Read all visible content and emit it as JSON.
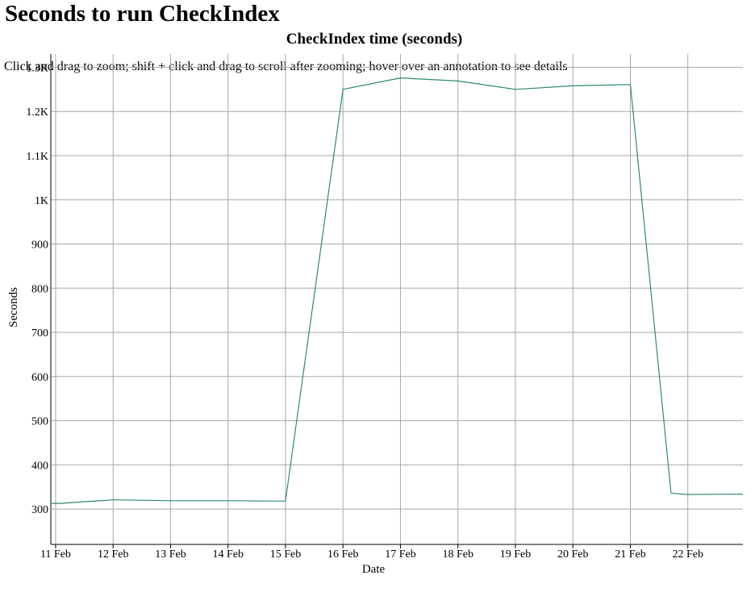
{
  "page": {
    "title": "Seconds to run CheckIndex",
    "instructions": "Click and drag to zoom; shift + click and drag to scroll after zooming; hover over an annotation to see details"
  },
  "chart_data": {
    "type": "line",
    "title": "CheckIndex time (seconds)",
    "xlabel": "Date",
    "ylabel": "Seconds",
    "xlim": [
      "2024-02-10T22:00",
      "2024-02-22T23:00"
    ],
    "ylim": [
      220,
      1330
    ],
    "grid": true,
    "legend": "none",
    "x_ticks": [
      {
        "t": "2024-02-11T00:00",
        "label": "11 Feb"
      },
      {
        "t": "2024-02-12T00:00",
        "label": "12 Feb"
      },
      {
        "t": "2024-02-13T00:00",
        "label": "13 Feb"
      },
      {
        "t": "2024-02-14T00:00",
        "label": "14 Feb"
      },
      {
        "t": "2024-02-15T00:00",
        "label": "15 Feb"
      },
      {
        "t": "2024-02-16T00:00",
        "label": "16 Feb"
      },
      {
        "t": "2024-02-17T00:00",
        "label": "17 Feb"
      },
      {
        "t": "2024-02-18T00:00",
        "label": "18 Feb"
      },
      {
        "t": "2024-02-19T00:00",
        "label": "19 Feb"
      },
      {
        "t": "2024-02-20T00:00",
        "label": "20 Feb"
      },
      {
        "t": "2024-02-21T00:00",
        "label": "21 Feb"
      },
      {
        "t": "2024-02-22T00:00",
        "label": "22 Feb"
      }
    ],
    "y_ticks": [
      {
        "v": 300,
        "label": "300"
      },
      {
        "v": 400,
        "label": "400"
      },
      {
        "v": 500,
        "label": "500"
      },
      {
        "v": 600,
        "label": "600"
      },
      {
        "v": 700,
        "label": "700"
      },
      {
        "v": 800,
        "label": "800"
      },
      {
        "v": 900,
        "label": "900"
      },
      {
        "v": 1000,
        "label": "1K"
      },
      {
        "v": 1100,
        "label": "1.1K"
      },
      {
        "v": 1200,
        "label": "1.2K"
      },
      {
        "v": 1300,
        "label": "1.3K"
      }
    ],
    "series": [
      {
        "color": "#2e8b6a",
        "points": [
          {
            "t": "2024-02-10T22:00",
            "y": 313
          },
          {
            "t": "2024-02-11T02:00",
            "y": 313
          },
          {
            "t": "2024-02-12T00:00",
            "y": 321
          },
          {
            "t": "2024-02-13T00:00",
            "y": 319
          },
          {
            "t": "2024-02-14T00:00",
            "y": 319
          },
          {
            "t": "2024-02-15T00:00",
            "y": 318
          },
          {
            "t": "2024-02-16T00:00",
            "y": 1250
          },
          {
            "t": "2024-02-17T00:00",
            "y": 1276
          },
          {
            "t": "2024-02-18T00:00",
            "y": 1269
          },
          {
            "t": "2024-02-19T00:00",
            "y": 1250
          },
          {
            "t": "2024-02-20T00:00",
            "y": 1258
          },
          {
            "t": "2024-02-21T00:00",
            "y": 1261
          },
          {
            "t": "2024-02-21T17:00",
            "y": 336
          },
          {
            "t": "2024-02-22T00:00",
            "y": 333
          },
          {
            "t": "2024-02-22T23:00",
            "y": 334
          }
        ]
      }
    ]
  }
}
